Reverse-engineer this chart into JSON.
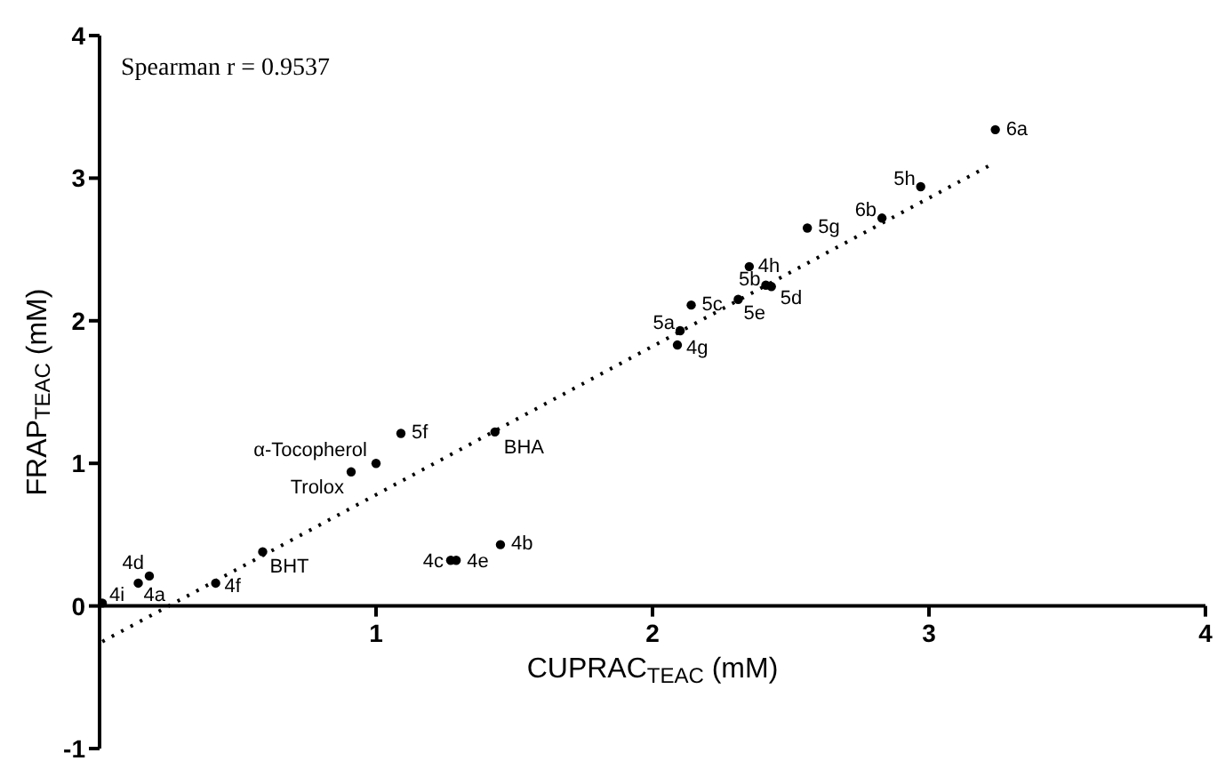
{
  "chart_data": {
    "type": "scatter",
    "xlabel": "CUPRAC$_{TEAC}$ (mM)",
    "ylabel": "FRAP$_{TEAC}$ (mM)",
    "xlim": [
      0,
      4
    ],
    "xticks": [
      1,
      2,
      3,
      4
    ],
    "ylim": [
      -1,
      4
    ],
    "yticks": [
      -1,
      0,
      1,
      2,
      3,
      4
    ],
    "series": [
      {
        "color": "#000000",
        "marker": "circle",
        "x": [
          0.01,
          0.14,
          0.18,
          0.42,
          0.59,
          0.91,
          1.0,
          1.09,
          1.43,
          1.27,
          1.29,
          1.45,
          2.09,
          2.1,
          2.14,
          2.31,
          2.41,
          2.43,
          2.35,
          2.56,
          2.83,
          2.97,
          3.24
        ],
        "values": [
          0.02,
          0.16,
          0.21,
          0.16,
          0.38,
          0.94,
          1.0,
          1.21,
          1.22,
          0.32,
          0.32,
          0.43,
          1.83,
          1.93,
          2.11,
          2.15,
          2.25,
          2.24,
          2.38,
          2.65,
          2.72,
          2.94,
          3.34
        ]
      },
      {
        "type": "line",
        "color": "#000000",
        "line_style": "dotted",
        "x": [
          0.01,
          3.22
        ],
        "values": [
          -0.25,
          3.09
        ]
      }
    ],
    "annotations": [
      "Spearman r = 0.9537",
      {
        "text": "4i",
        "x": 0.01,
        "y": 0.02
      },
      {
        "text": "4a",
        "x": 0.14,
        "y": 0.16
      },
      {
        "text": "4d",
        "x": 0.18,
        "y": 0.21
      },
      {
        "text": "4f",
        "x": 0.42,
        "y": 0.16
      },
      {
        "text": "BHT",
        "x": 0.59,
        "y": 0.38
      },
      {
        "text": "Trolox",
        "x": 0.91,
        "y": 0.94
      },
      {
        "text": "α-Tocopherol",
        "x": 1.0,
        "y": 1.0
      },
      {
        "text": "5f",
        "x": 1.09,
        "y": 1.21
      },
      {
        "text": "BHA",
        "x": 1.43,
        "y": 1.22
      },
      {
        "text": "4c",
        "x": 1.27,
        "y": 0.32
      },
      {
        "text": "4e",
        "x": 1.29,
        "y": 0.32
      },
      {
        "text": "4b",
        "x": 1.45,
        "y": 0.43
      },
      {
        "text": "4g",
        "x": 2.09,
        "y": 1.83
      },
      {
        "text": "5a",
        "x": 2.1,
        "y": 1.93
      },
      {
        "text": "5c",
        "x": 2.14,
        "y": 2.11
      },
      {
        "text": "5e",
        "x": 2.31,
        "y": 2.15
      },
      {
        "text": "5b",
        "x": 2.41,
        "y": 2.25
      },
      {
        "text": "5d",
        "x": 2.43,
        "y": 2.24
      },
      {
        "text": "4h",
        "x": 2.35,
        "y": 2.38
      },
      {
        "text": "5g",
        "x": 2.56,
        "y": 2.65
      },
      {
        "text": "6b",
        "x": 2.83,
        "y": 2.72
      },
      {
        "text": "5h",
        "x": 2.97,
        "y": 2.94
      },
      {
        "text": "6a",
        "x": 3.24,
        "y": 3.34
      }
    ]
  }
}
